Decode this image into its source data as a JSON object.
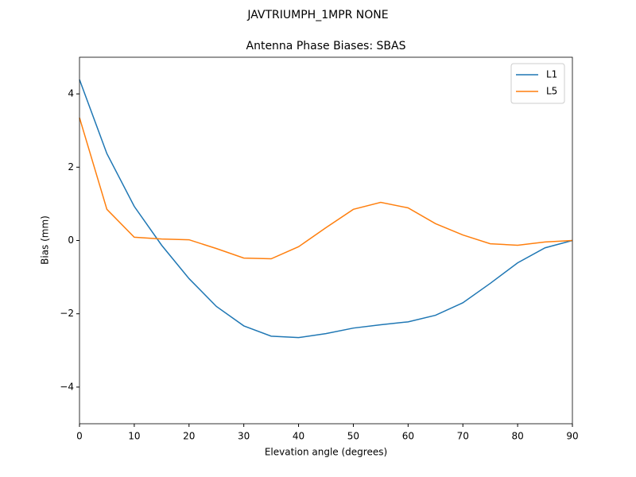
{
  "chart_data": {
    "type": "line",
    "title": "JAVTRIUMPH_1MPR NONE",
    "subtitle": "Antenna Phase Biases: SBAS",
    "x_label": "Elevation angle (degrees)",
    "y_label": "Bias (mm)",
    "x": [
      0,
      5,
      10,
      15,
      20,
      25,
      30,
      35,
      40,
      45,
      50,
      55,
      60,
      65,
      70,
      75,
      80,
      85,
      90
    ],
    "series": [
      {
        "name": "L1",
        "color": "#1f77b4",
        "values": [
          4.39,
          2.37,
          0.93,
          -0.13,
          -1.04,
          -1.8,
          -2.33,
          -2.61,
          -2.65,
          -2.54,
          -2.39,
          -2.3,
          -2.22,
          -2.04,
          -1.7,
          -1.17,
          -0.61,
          -0.2,
          0
        ]
      },
      {
        "name": "L5",
        "color": "#ff7f0e",
        "values": [
          3.35,
          0.85,
          0.09,
          0.04,
          0.02,
          -0.22,
          -0.48,
          -0.5,
          -0.17,
          0.35,
          0.85,
          1.04,
          0.89,
          0.46,
          0.15,
          -0.09,
          -0.13,
          -0.04,
          0
        ]
      }
    ],
    "xlim": [
      0,
      90
    ],
    "xticks": [
      0,
      10,
      20,
      30,
      40,
      50,
      60,
      70,
      80,
      90
    ],
    "ylim": [
      -5,
      5
    ],
    "yticks": [
      {
        "value": -4,
        "label": "−4"
      },
      {
        "value": -2,
        "label": "−2"
      },
      0,
      2,
      4
    ],
    "grid": false,
    "legend": "upper-right"
  }
}
